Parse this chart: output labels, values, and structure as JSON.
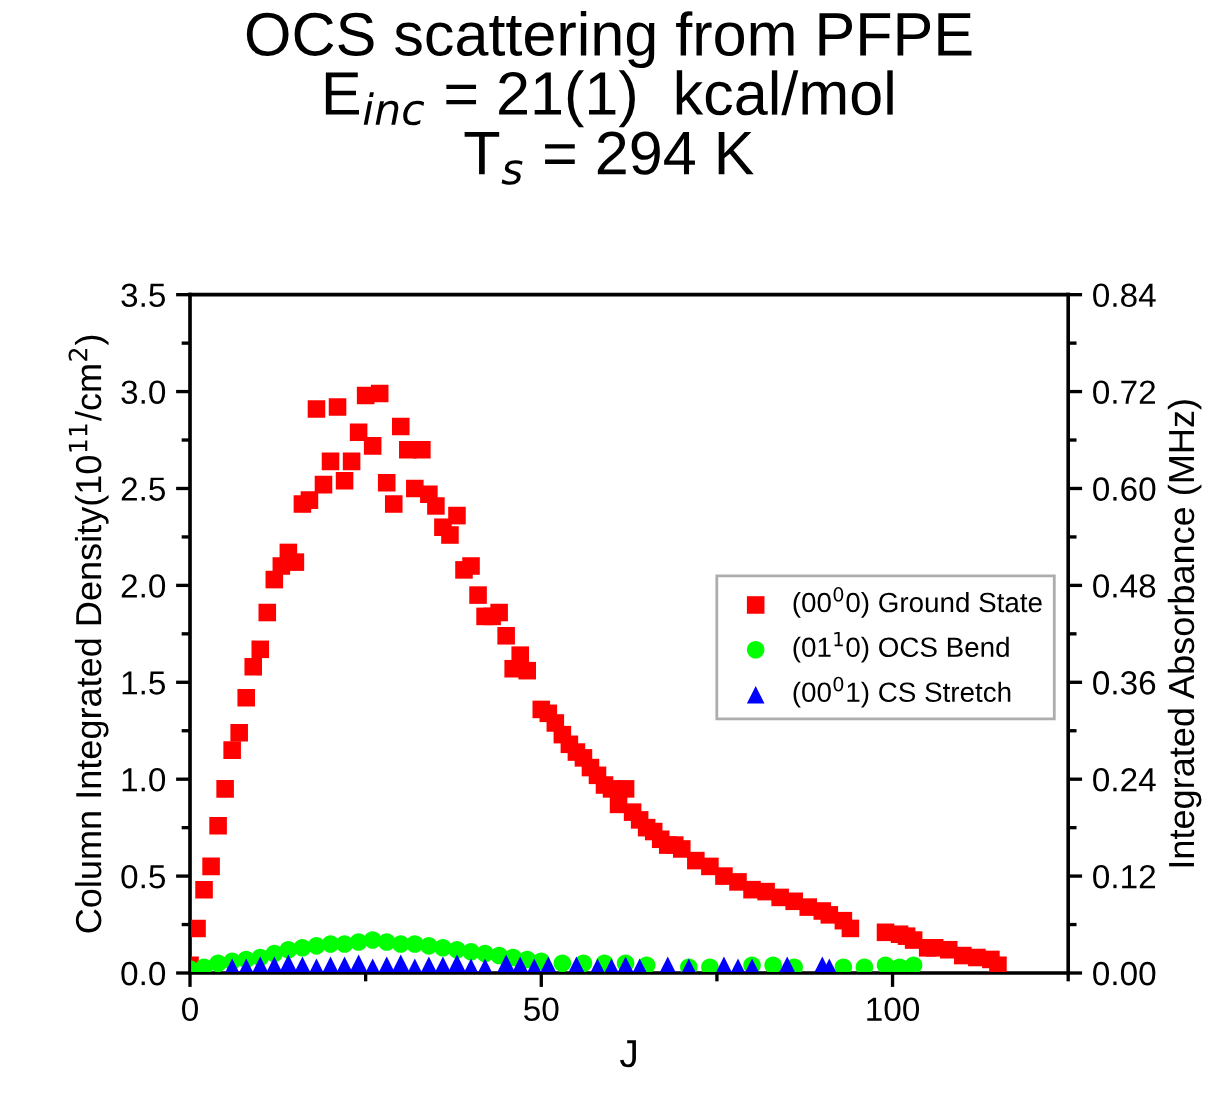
{
  "chart_data": {
    "type": "scatter",
    "title": "OCS scattering from PFPE\nE$_{inc}$ = 21(1)  kcal/mol\nT$_{s}$ = 294 K",
    "xlabel": "J",
    "ylabel": "Column Integrated Density(10$^{11}$/cm$^{2}$)",
    "y2label": "Integrated Absorbance (MHz)",
    "xlim": [
      0,
      125
    ],
    "xticks": [
      0,
      {
        "value": 25,
        "label": null
      },
      50,
      {
        "value": 75,
        "label": null
      },
      100,
      {
        "value": 125,
        "label": null
      }
    ],
    "ylim": [
      0,
      3.5
    ],
    "yticks": [
      {
        "value": 0,
        "label": "0.0"
      },
      {
        "value": 0.25,
        "label": null
      },
      0.5,
      {
        "value": 0.75,
        "label": null
      },
      {
        "value": 1,
        "label": "1.0"
      },
      {
        "value": 1.25,
        "label": null
      },
      1.5,
      {
        "value": 1.75,
        "label": null
      },
      {
        "value": 2,
        "label": "2.0"
      },
      {
        "value": 2.25,
        "label": null
      },
      2.5,
      {
        "value": 2.75,
        "label": null
      },
      {
        "value": 3,
        "label": "3.0"
      },
      {
        "value": 3.25,
        "label": null
      },
      3.5
    ],
    "y2lim": [
      0,
      0.84
    ],
    "y2ticks": [
      {
        "value": 0,
        "label": "0.00"
      },
      {
        "value": 0.06,
        "label": null
      },
      0.12,
      {
        "value": 0.18,
        "label": null
      },
      0.24,
      {
        "value": 0.3,
        "label": null
      },
      0.36,
      {
        "value": 0.42,
        "label": null
      },
      0.48,
      {
        "value": 0.54,
        "label": null
      },
      {
        "value": 0.6,
        "label": "0.60"
      },
      {
        "value": 0.66,
        "label": null
      },
      0.72,
      {
        "value": 0.78,
        "label": null
      },
      0.84
    ],
    "legend": "right",
    "grid": false,
    "series": [
      {
        "name": "(00$^{0}$0) Ground State",
        "color": "#ff0000",
        "marker": "square",
        "x": [
          0,
          1,
          2,
          3,
          4,
          5,
          6,
          7,
          8,
          9,
          10,
          11,
          12,
          13,
          14,
          15,
          16,
          17,
          18,
          19,
          20,
          21,
          22,
          23,
          24,
          25,
          26,
          27,
          28,
          29,
          30,
          31,
          32,
          33,
          34,
          35,
          36,
          37,
          38,
          39,
          40,
          41,
          42,
          43,
          44,
          45,
          46,
          47,
          48,
          50,
          51,
          52,
          53,
          54,
          55,
          56,
          57,
          58,
          59,
          60,
          61,
          62,
          63,
          64,
          65,
          66,
          67,
          68,
          69,
          70,
          72,
          74,
          76,
          78,
          80,
          82,
          84,
          86,
          88,
          90,
          91,
          93,
          94,
          99,
          101,
          102,
          103,
          105,
          106,
          108,
          110,
          112,
          114,
          115
        ],
        "values": [
          0.04,
          0.23,
          0.43,
          0.55,
          0.76,
          0.95,
          1.15,
          1.24,
          1.42,
          1.58,
          1.67,
          1.86,
          2.03,
          2.1,
          2.17,
          2.12,
          2.42,
          2.44,
          2.91,
          2.52,
          2.64,
          2.92,
          2.54,
          2.64,
          2.79,
          2.98,
          2.72,
          2.99,
          2.53,
          2.42,
          2.82,
          2.7,
          2.5,
          2.7,
          2.47,
          2.41,
          2.3,
          2.26,
          2.36,
          2.08,
          2.1,
          1.95,
          1.84,
          1.84,
          1.86,
          1.74,
          1.57,
          1.64,
          1.56,
          1.36,
          1.34,
          1.29,
          1.23,
          1.18,
          1.14,
          1.11,
          1.06,
          1.02,
          0.97,
          0.95,
          0.87,
          0.95,
          0.83,
          0.79,
          0.75,
          0.73,
          0.69,
          0.66,
          0.66,
          0.64,
          0.58,
          0.55,
          0.5,
          0.47,
          0.43,
          0.42,
          0.39,
          0.37,
          0.34,
          0.32,
          0.3,
          0.27,
          0.23,
          0.21,
          0.2,
          0.19,
          0.17,
          0.13,
          0.13,
          0.12,
          0.09,
          0.08,
          0.07,
          0.04
        ]
      },
      {
        "name": "(01$^{1}$0) OCS Bend",
        "color": "#00ff00",
        "marker": "circle",
        "x": [
          0,
          2,
          4,
          6,
          8,
          10,
          12,
          14,
          16,
          18,
          20,
          22,
          24,
          26,
          28,
          30,
          32,
          34,
          36,
          38,
          40,
          42,
          44,
          46,
          48,
          50,
          53,
          56,
          59,
          62,
          65,
          68,
          71,
          74,
          77,
          80,
          83,
          86,
          90,
          93,
          96,
          99,
          101,
          103
        ],
        "values": [
          0.02,
          0.03,
          0.05,
          0.06,
          0.07,
          0.08,
          0.1,
          0.12,
          0.13,
          0.14,
          0.15,
          0.15,
          0.16,
          0.17,
          0.16,
          0.15,
          0.15,
          0.14,
          0.13,
          0.12,
          0.11,
          0.1,
          0.09,
          0.08,
          0.07,
          0.06,
          0.05,
          0.05,
          0.05,
          0.05,
          0.04,
          null,
          0.03,
          0.03,
          null,
          0.04,
          0.04,
          0.03,
          null,
          0.03,
          0.03,
          0.04,
          0.03,
          0.04
        ]
      },
      {
        "name": "(00$^{0}$1) CS Stretch",
        "color": "#0000ff",
        "marker": "triangle",
        "x": [
          6,
          8,
          10,
          12,
          14,
          16,
          18,
          20,
          22,
          24,
          26,
          28,
          30,
          32,
          34,
          36,
          38,
          40,
          42,
          45,
          47,
          49,
          51,
          55,
          58,
          60,
          62,
          64,
          68,
          71,
          76,
          78,
          80,
          85,
          90,
          91
        ],
        "values": [
          0.03,
          0.03,
          0.04,
          0.04,
          0.05,
          0.04,
          0.03,
          0.04,
          0.04,
          0.05,
          0.03,
          0.04,
          0.05,
          0.03,
          0.04,
          0.04,
          0.05,
          0.03,
          0.03,
          0.05,
          0.04,
          0.03,
          0.04,
          0.04,
          0.03,
          0.03,
          0.04,
          0.03,
          0.04,
          0.03,
          0.04,
          0.03,
          0.03,
          0.04,
          0.04,
          0.03
        ]
      }
    ]
  }
}
